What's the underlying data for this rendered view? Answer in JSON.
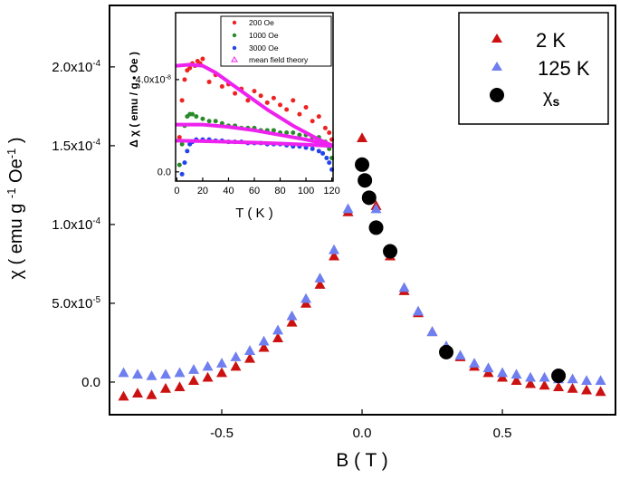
{
  "chart_data": [
    {
      "type": "scatter",
      "xlabel": "B ( T )",
      "ylabel": "χ ( emu g -1 Oe-1 )",
      "ylabel_parts": {
        "pre": "χ ( emu g ",
        "sup1": "-1",
        "mid": " Oe",
        "sup2": "-1",
        "post": " )"
      },
      "xlim": [
        -0.9,
        0.903
      ],
      "ylim": [
        -2.07e-05,
        0.000239
      ],
      "xticks": [
        -0.5,
        0,
        0.5
      ],
      "xtick_labels": [
        "-0.5",
        "0.0",
        "0.5"
      ],
      "yticks": [
        0,
        5e-05,
        0.0001,
        0.00015,
        0.0002
      ],
      "ytick_labels": [
        {
          "mant": "0.0",
          "exp": ""
        },
        {
          "mant": "5.0x10",
          "exp": "-5"
        },
        {
          "mant": "1.0x10",
          "exp": "-4"
        },
        {
          "mant": "1.5x10",
          "exp": "-4"
        },
        {
          "mant": "2.0x10",
          "exp": "-4"
        }
      ],
      "grid": false,
      "legend_placement": "top-right",
      "series": [
        {
          "name": "2 K",
          "marker": "triangle",
          "color": "#cc1111",
          "x": [
            -0.85,
            -0.8,
            -0.75,
            -0.7,
            -0.65,
            -0.6,
            -0.55,
            -0.5,
            -0.45,
            -0.4,
            -0.35,
            -0.3,
            -0.25,
            -0.2,
            -0.15,
            -0.1,
            -0.05,
            0,
            0.05,
            0.1,
            0.15,
            0.2,
            0.25,
            0.3,
            0.35,
            0.4,
            0.45,
            0.5,
            0.55,
            0.6,
            0.65,
            0.7,
            0.75,
            0.8,
            0.85
          ],
          "y": [
            -9e-06,
            -7e-06,
            -8e-06,
            -4e-06,
            -3e-06,
            1e-06,
            3e-06,
            6e-06,
            1e-05,
            1.5e-05,
            2.2e-05,
            2.8e-05,
            3.8e-05,
            5e-05,
            6.2e-05,
            8e-05,
            0.000108,
            0.000155,
            0.000112,
            8e-05,
            5.8e-05,
            4.4e-05,
            3.2e-05,
            2.2e-05,
            1.6e-05,
            1e-05,
            6e-06,
            3e-06,
            1e-06,
            -1e-06,
            -2e-06,
            -3e-06,
            -4e-06,
            -5e-06,
            -6e-06
          ]
        },
        {
          "name": "125 K",
          "marker": "triangle",
          "color": "#6f7ff0",
          "x": [
            -0.85,
            -0.8,
            -0.75,
            -0.7,
            -0.65,
            -0.6,
            -0.55,
            -0.5,
            -0.45,
            -0.4,
            -0.35,
            -0.3,
            -0.25,
            -0.2,
            -0.15,
            -0.1,
            -0.05,
            0,
            0.05,
            0.1,
            0.15,
            0.2,
            0.25,
            0.3,
            0.35,
            0.4,
            0.45,
            0.5,
            0.55,
            0.6,
            0.65,
            0.7,
            0.75,
            0.8,
            0.85
          ],
          "y": [
            6e-06,
            5e-06,
            4e-06,
            5e-06,
            6e-06,
            8e-06,
            1e-05,
            1.2e-05,
            1.6e-05,
            2e-05,
            2.6e-05,
            3.3e-05,
            4.2e-05,
            5.3e-05,
            6.6e-05,
            8.4e-05,
            0.00011,
            0.000138,
            0.00011,
            8.2e-05,
            6e-05,
            4.5e-05,
            3.2e-05,
            2.3e-05,
            1.7e-05,
            1.2e-05,
            9e-06,
            6e-06,
            5e-06,
            3e-06,
            3e-06,
            2e-06,
            2e-06,
            1e-06,
            1e-06
          ]
        },
        {
          "name": "χs",
          "name_parts": {
            "base": "χ",
            "sub": "s"
          },
          "marker": "circle",
          "color": "#000000",
          "x": [
            0.0,
            0.01,
            0.025,
            0.05,
            0.1,
            0.3,
            0.7
          ],
          "y": [
            0.000138,
            0.000128,
            0.000117,
            9.8e-05,
            8.3e-05,
            1.9e-05,
            4e-06
          ]
        }
      ]
    },
    {
      "type": "scatter",
      "xlabel": "T ( K )",
      "ylabel": "Δ χ   ( emu / g • Oe )",
      "xlim": [
        -1,
        121
      ],
      "ylim": [
        -4e-09,
        6.9e-08
      ],
      "xticks": [
        0,
        20,
        40,
        60,
        80,
        100,
        120
      ],
      "xtick_labels": [
        "0",
        "20",
        "40",
        "60",
        "80",
        "100",
        "120"
      ],
      "yticks": [
        0,
        4e-08
      ],
      "ytick_labels": [
        {
          "mant": "0.0",
          "exp": ""
        },
        {
          "mant": "4.0x10",
          "exp": "-8"
        }
      ],
      "grid": false,
      "legend_placement": "top-right",
      "series": [
        {
          "name": "200 Oe",
          "marker": "circle",
          "color": "#ee2222",
          "x": [
            2,
            4,
            6,
            8,
            10,
            12,
            14,
            16,
            18,
            20,
            25,
            30,
            35,
            40,
            45,
            50,
            55,
            60,
            65,
            70,
            75,
            80,
            85,
            90,
            95,
            100,
            105,
            110,
            115,
            118,
            120
          ],
          "y": [
            1.5e-08,
            3.1e-08,
            4e-08,
            4.4e-08,
            4.5e-08,
            4.7e-08,
            4.6e-08,
            4.8e-08,
            4.7e-08,
            4.9e-08,
            3.9e-08,
            4.2e-08,
            3.7e-08,
            3.8e-08,
            3.4e-08,
            3.6e-08,
            3.1e-08,
            3.5e-08,
            3.3e-08,
            3e-08,
            3.2e-08,
            2.9e-08,
            2.7e-08,
            3.1e-08,
            2.5e-08,
            2.8e-08,
            2.2e-08,
            2.4e-08,
            1.9e-08,
            1.7e-08,
            1.4e-08
          ]
        },
        {
          "name": "1000 Oe",
          "marker": "circle",
          "color": "#2a8a2a",
          "x": [
            2,
            4,
            6,
            8,
            10,
            12,
            15,
            20,
            25,
            30,
            35,
            40,
            45,
            50,
            55,
            60,
            65,
            70,
            75,
            80,
            85,
            90,
            95,
            100,
            105,
            110,
            115,
            118,
            120
          ],
          "y": [
            3e-09,
            1.2e-08,
            2e-08,
            2.4e-08,
            2.5e-08,
            2.5e-08,
            2.4e-08,
            2.3e-08,
            2.2e-08,
            2.2e-08,
            2.1e-08,
            2e-08,
            2e-08,
            1.9e-08,
            1.9e-08,
            1.9e-08,
            1.8e-08,
            1.8e-08,
            1.8e-08,
            1.7e-08,
            1.7e-08,
            1.7e-08,
            1.6e-08,
            1.6e-08,
            1.5e-08,
            1.5e-08,
            1.3e-08,
            1e-08,
            6e-09
          ]
        },
        {
          "name": "3000 Oe",
          "marker": "circle",
          "color": "#2244ee",
          "x": [
            4,
            6,
            8,
            10,
            12,
            15,
            20,
            25,
            30,
            35,
            40,
            45,
            50,
            55,
            60,
            65,
            70,
            75,
            80,
            85,
            90,
            95,
            100,
            105,
            110,
            113,
            116,
            118,
            120
          ],
          "y": [
            -1e-09,
            4e-09,
            9e-09,
            1.2e-08,
            1.3e-08,
            1.4e-08,
            1.4e-08,
            1.4e-08,
            1.35e-08,
            1.35e-08,
            1.3e-08,
            1.3e-08,
            1.3e-08,
            1.25e-08,
            1.25e-08,
            1.25e-08,
            1.2e-08,
            1.2e-08,
            1.2e-08,
            1.15e-08,
            1.1e-08,
            1.1e-08,
            1.05e-08,
            1e-08,
            9e-09,
            8e-09,
            6e-09,
            4e-09,
            1e-09
          ]
        },
        {
          "name": "mean field theory",
          "marker": "triangle",
          "color": "#ee22ee",
          "line": true,
          "curves": [
            {
              "x": [
                0,
                10,
                20,
                30,
                40,
                50,
                60,
                70,
                80,
                90,
                100,
                110,
                120
              ],
              "y": [
                4.6e-08,
                4.65e-08,
                4.6e-08,
                4.3e-08,
                3.9e-08,
                3.5e-08,
                3.1e-08,
                2.7e-08,
                2.35e-08,
                2e-08,
                1.7e-08,
                1.4e-08,
                1.15e-08
              ]
            },
            {
              "x": [
                0,
                20,
                40,
                60,
                80,
                100,
                120
              ],
              "y": [
                2.05e-08,
                2.05e-08,
                1.95e-08,
                1.8e-08,
                1.6e-08,
                1.4e-08,
                1.15e-08
              ]
            },
            {
              "x": [
                0,
                20,
                40,
                60,
                80,
                100,
                120
              ],
              "y": [
                1.35e-08,
                1.33e-08,
                1.3e-08,
                1.27e-08,
                1.23e-08,
                1.18e-08,
                1.12e-08
              ]
            }
          ]
        }
      ]
    }
  ]
}
